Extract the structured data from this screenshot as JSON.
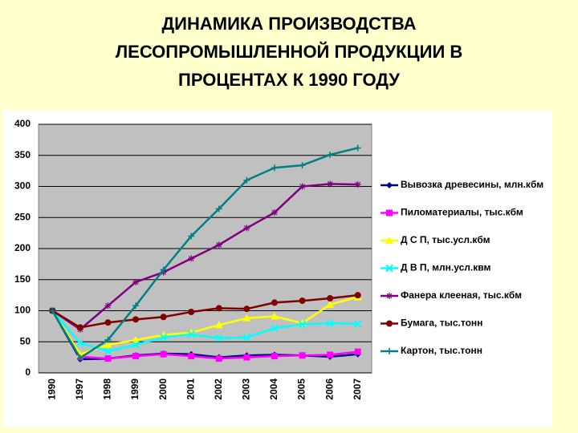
{
  "chart_data": {
    "type": "line",
    "title_lines": [
      "ДИНАМИКА ПРОИЗВОДСТВА",
      "ЛЕСОПРОМЫШЛЕННОЙ ПРОДУКЦИИ В",
      "ПРОЦЕНТАХ К 1990 ГОДУ"
    ],
    "categories": [
      "1990",
      "1997",
      "1998",
      "1999",
      "2000",
      "2001",
      "2002",
      "2003",
      "2004",
      "2005",
      "2006",
      "2007"
    ],
    "ylim": [
      0,
      400
    ],
    "yticks": [
      0,
      50,
      100,
      150,
      200,
      250,
      300,
      350,
      400
    ],
    "grid": true,
    "legend": "right",
    "series": [
      {
        "name": "Вывозка древесины, млн.кбм",
        "color": "#000080",
        "marker": "diamond",
        "values": [
          100,
          22,
          23,
          28,
          31,
          30,
          25,
          28,
          29,
          28,
          26,
          30
        ]
      },
      {
        "name": "Пиломатериалы, тыс.кбм",
        "color": "#ff00ff",
        "marker": "square",
        "values": [
          100,
          26,
          23,
          27,
          30,
          27,
          23,
          25,
          27,
          28,
          29,
          34
        ]
      },
      {
        "name": "Д С П, тыс.усл.кбм",
        "color": "#ffff00",
        "marker": "triangle",
        "values": [
          100,
          30,
          45,
          53,
          61,
          65,
          77,
          88,
          91,
          80,
          110,
          122
        ]
      },
      {
        "name": "Д В П, млн.усл.квм",
        "color": "#00ffff",
        "marker": "x",
        "values": [
          100,
          48,
          35,
          45,
          57,
          62,
          56,
          57,
          72,
          78,
          80,
          79
        ]
      },
      {
        "name": "Фанера клееная, тыс.кбм",
        "color": "#800080",
        "marker": "star",
        "values": [
          100,
          70,
          108,
          146,
          162,
          184,
          206,
          233,
          258,
          300,
          304,
          303
        ]
      },
      {
        "name": "Бумага, тыс.тонн",
        "color": "#800000",
        "marker": "circle",
        "values": [
          100,
          73,
          81,
          86,
          90,
          98,
          104,
          103,
          113,
          116,
          120,
          125
        ]
      },
      {
        "name": "Картон, тыс.тонн",
        "color": "#008080",
        "marker": "plus",
        "values": [
          100,
          24,
          53,
          108,
          166,
          220,
          264,
          310,
          330,
          334,
          351,
          362
        ]
      }
    ]
  }
}
